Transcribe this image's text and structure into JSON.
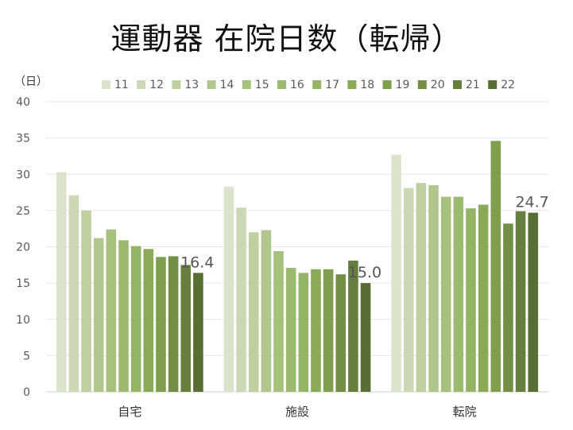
{
  "chart_data": {
    "type": "bar",
    "title": "運動器 在院日数（転帰）",
    "ylabel": "（日）",
    "xlabel": "",
    "ylim": [
      0,
      40
    ],
    "yticks": [
      0,
      5,
      10,
      15,
      20,
      25,
      30,
      35,
      40
    ],
    "grid": true,
    "legend_position": "top",
    "categories": [
      "自宅",
      "施設",
      "転院"
    ],
    "series": [
      {
        "name": "11",
        "color": "#dce3cc",
        "values": [
          30.3,
          28.3,
          32.7
        ]
      },
      {
        "name": "12",
        "color": "#ccd7b5",
        "values": [
          27.1,
          25.4,
          28.1
        ]
      },
      {
        "name": "13",
        "color": "#bfcf9f",
        "values": [
          25.0,
          22.0,
          28.8
        ]
      },
      {
        "name": "14",
        "color": "#b1c68d",
        "values": [
          21.2,
          22.3,
          28.5
        ]
      },
      {
        "name": "15",
        "color": "#a6c07d",
        "values": [
          22.4,
          19.4,
          26.9
        ]
      },
      {
        "name": "16",
        "color": "#9cba6f",
        "values": [
          20.9,
          17.1,
          26.9
        ]
      },
      {
        "name": "17",
        "color": "#93b463",
        "values": [
          20.1,
          16.4,
          25.3
        ]
      },
      {
        "name": "18",
        "color": "#8aaa58",
        "values": [
          19.7,
          16.9,
          25.8
        ]
      },
      {
        "name": "19",
        "color": "#7f9f4e",
        "values": [
          18.6,
          16.9,
          34.6
        ]
      },
      {
        "name": "20",
        "color": "#728f45",
        "values": [
          18.7,
          16.2,
          23.2
        ]
      },
      {
        "name": "21",
        "color": "#667f3e",
        "values": [
          17.5,
          18.1,
          24.9
        ]
      },
      {
        "name": "22",
        "color": "#586e34",
        "values": [
          16.4,
          15.0,
          24.7
        ]
      }
    ],
    "data_labels": [
      {
        "series": "22",
        "category": "自宅",
        "text": "16.4"
      },
      {
        "series": "22",
        "category": "施設",
        "text": "15.0"
      },
      {
        "series": "22",
        "category": "転院",
        "text": "24.7"
      }
    ]
  }
}
